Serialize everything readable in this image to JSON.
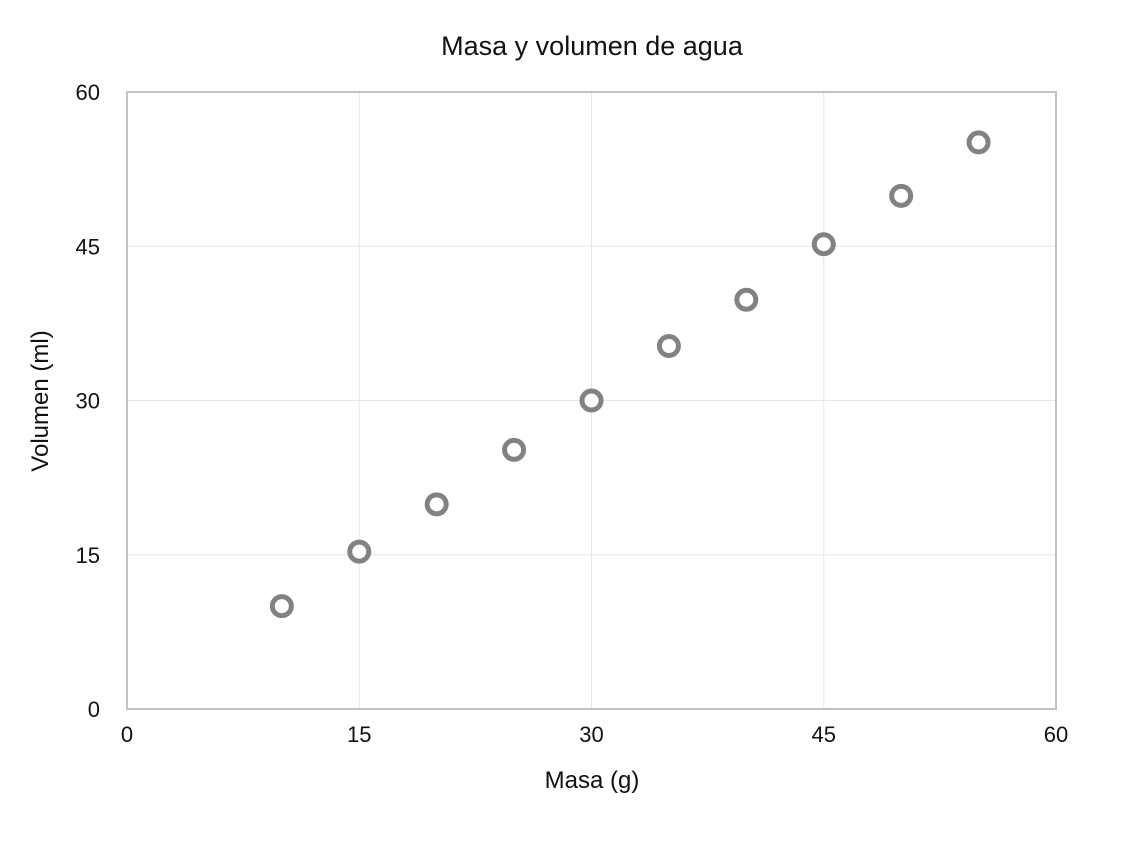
{
  "chart_data": {
    "type": "scatter",
    "title": "Masa y volumen de agua",
    "xlabel": "Masa (g)",
    "ylabel": "Volumen (ml)",
    "xlim": [
      0,
      60
    ],
    "ylim": [
      0,
      60
    ],
    "xticks": [
      "0",
      "15",
      "30",
      "45",
      "60"
    ],
    "yticks": [
      "0",
      "15",
      "30",
      "45",
      "60"
    ],
    "grid": true,
    "legend": false,
    "series": [
      {
        "color": "#7f8480",
        "marker": "hollow-circle",
        "points": [
          {
            "x": 10,
            "y": 10
          },
          {
            "x": 15,
            "y": 15.3
          },
          {
            "x": 20,
            "y": 19.9
          },
          {
            "x": 25,
            "y": 25.2
          },
          {
            "x": 30,
            "y": 30
          },
          {
            "x": 35,
            "y": 35.3
          },
          {
            "x": 40,
            "y": 39.8
          },
          {
            "x": 45,
            "y": 45.2
          },
          {
            "x": 50,
            "y": 49.9
          },
          {
            "x": 55,
            "y": 55.1
          }
        ]
      }
    ]
  }
}
